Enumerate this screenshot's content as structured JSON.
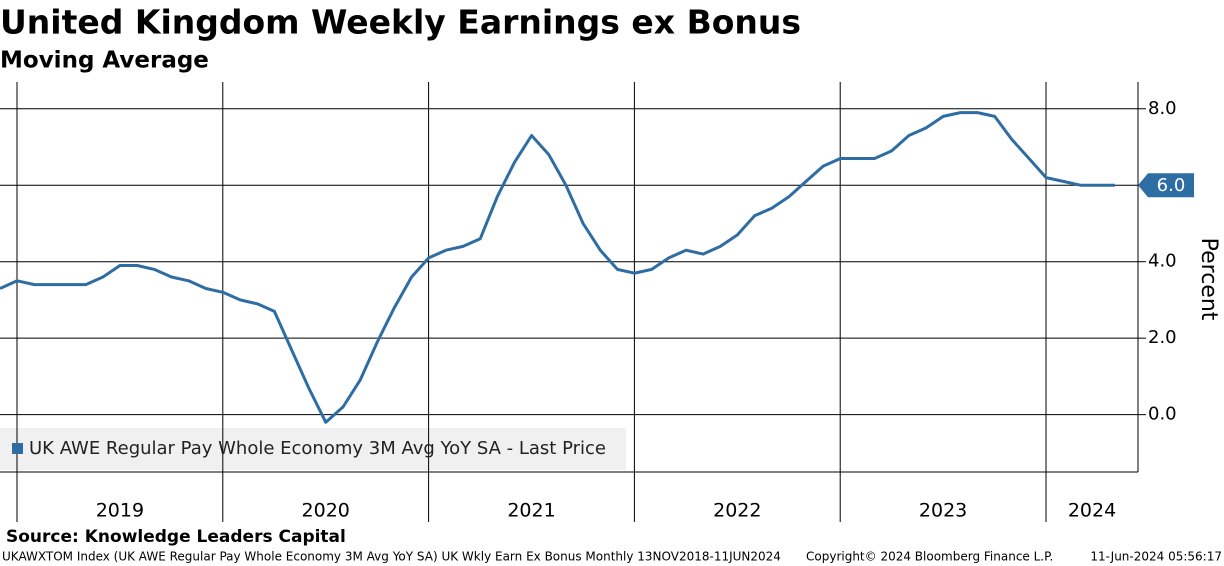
{
  "chart_data": {
    "type": "line",
    "title": "United Kingdom Weekly Earnings ex Bonus",
    "subtitle": "Moving Average",
    "y_label": "Percent",
    "year_labels": [
      "2019",
      "2020",
      "2021",
      "2022",
      "2023",
      "2024"
    ],
    "series": [
      {
        "name": "UK AWE Regular Pay Whole Economy 3M Avg YoY SA - Last Price",
        "color": "#2e6da4",
        "values": [
          3.3,
          3.5,
          3.4,
          3.4,
          3.4,
          3.4,
          3.6,
          3.9,
          3.9,
          3.8,
          3.6,
          3.5,
          3.3,
          3.2,
          3.0,
          2.9,
          2.7,
          1.7,
          0.7,
          -0.2,
          0.2,
          0.9,
          1.9,
          2.8,
          3.6,
          4.1,
          4.3,
          4.4,
          4.6,
          5.7,
          6.6,
          7.3,
          6.8,
          6.0,
          5.0,
          4.3,
          3.8,
          3.7,
          3.8,
          4.1,
          4.3,
          4.2,
          4.4,
          4.7,
          5.2,
          5.4,
          5.7,
          6.1,
          6.5,
          6.7,
          6.7,
          6.7,
          6.9,
          7.3,
          7.5,
          7.8,
          7.9,
          7.9,
          7.8,
          7.2,
          6.7,
          6.2,
          6.1,
          6.0,
          6.0,
          6.0
        ],
        "last_label": "6.0"
      }
    ],
    "ylim": [
      -1.5,
      8.7
    ],
    "yticks": [
      {
        "value": 0,
        "label": "0.0"
      },
      {
        "value": 2,
        "label": "2.0"
      },
      {
        "value": 4,
        "label": "4.0"
      },
      {
        "value": 6,
        "label": "6.0"
      },
      {
        "value": 8,
        "label": "8.0"
      }
    ],
    "grid": true,
    "legend": "bottom-left",
    "source": "Source: Knowledge Leaders Capital",
    "footer_left": "UKAWXTOM Index (UK AWE Regular Pay Whole Economy 3M Avg YoY SA) UK Wkly Earn Ex Bonus  Monthly 13NOV2018-11JUN2024",
    "footer_mid": "Copyright© 2024 Bloomberg Finance L.P.",
    "footer_right": "11-Jun-2024 05:56:17"
  }
}
